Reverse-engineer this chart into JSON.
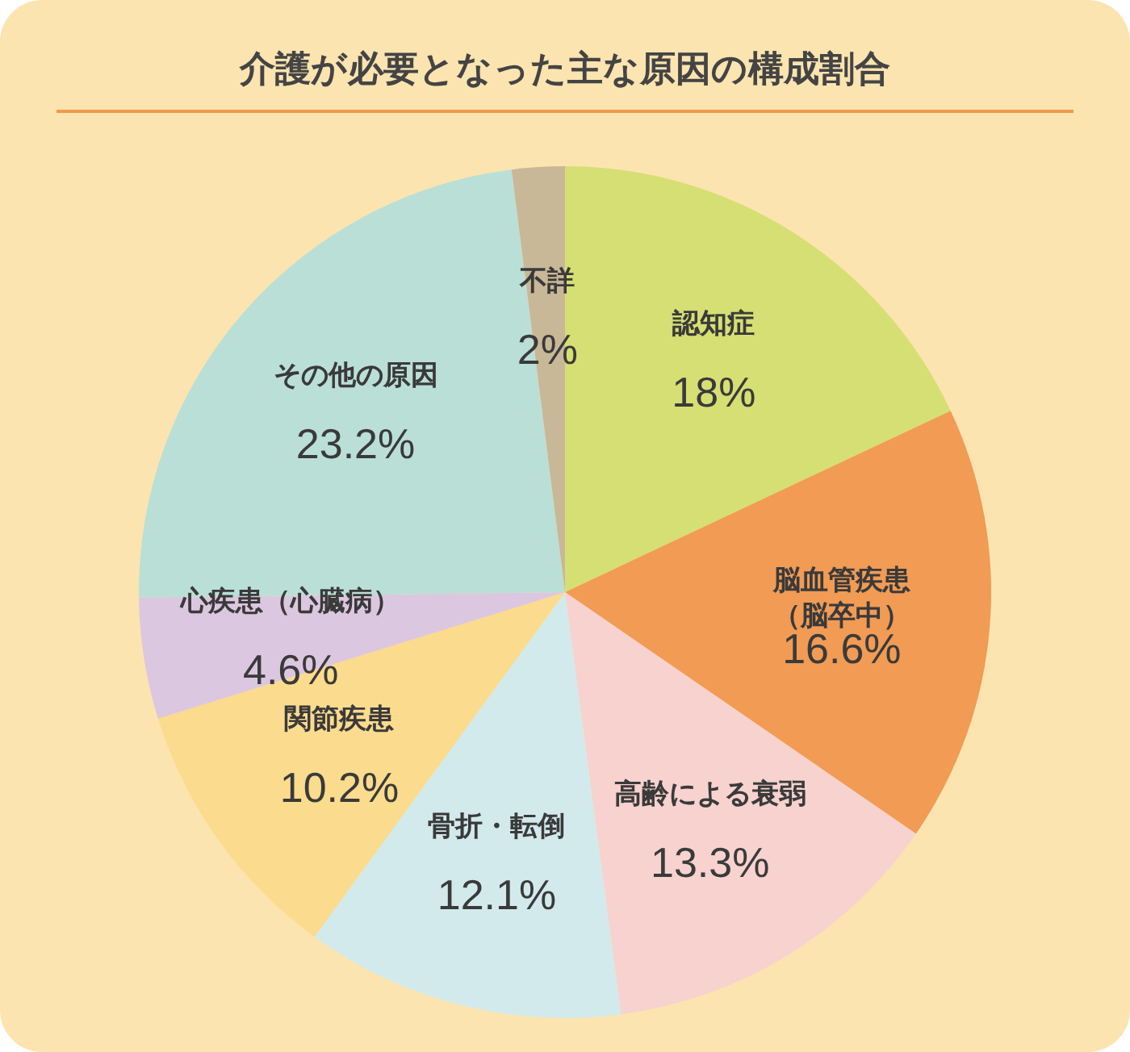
{
  "chart_data": {
    "type": "pie",
    "title": "介護が必要となった主な原因の構成割合",
    "categories": [
      "認知症",
      "脳血管疾患（脳卒中）",
      "高齢による衰弱",
      "骨折・転倒",
      "関節疾患",
      "心疾患（心臓病）",
      "その他の原因",
      "不詳"
    ],
    "values": [
      18,
      16.6,
      13.3,
      12.1,
      10.2,
      4.6,
      23.2,
      2
    ],
    "value_labels": [
      "18%",
      "16.6%",
      "13.3%",
      "12.1%",
      "10.2%",
      "4.6%",
      "23.2%",
      "2%"
    ],
    "colors": [
      "#d6df73",
      "#f19b55",
      "#f7d2cf",
      "#d3eaec",
      "#fbdb8d",
      "#dcc7e0",
      "#badfd7",
      "#c8b898"
    ]
  }
}
